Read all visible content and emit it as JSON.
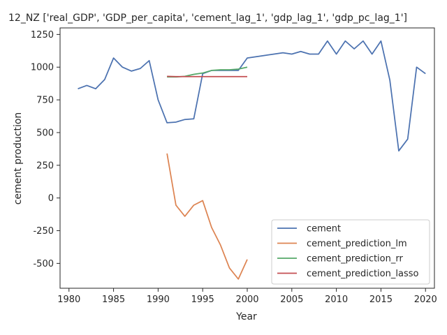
{
  "chart_data": {
    "type": "line",
    "title": "12_NZ ['real_GDP', 'GDP_per_capita', 'cement_lag_1', 'gdp_lag_1', 'gdp_pc_lag_1']",
    "xlabel": "Year",
    "ylabel": "cement production",
    "xlim": [
      1979,
      2021
    ],
    "ylim": [
      -690,
      1300
    ],
    "xticks": [
      1980,
      1985,
      1990,
      1995,
      2000,
      2005,
      2010,
      2015,
      2020
    ],
    "yticks": [
      -500,
      -250,
      0,
      250,
      500,
      750,
      1000,
      1250
    ],
    "legend_position": "lower-right",
    "series": [
      {
        "name": "cement",
        "color": "#4c72b0",
        "x": [
          1981,
          1982,
          1983,
          1984,
          1985,
          1986,
          1987,
          1988,
          1989,
          1990,
          1991,
          1992,
          1993,
          1994,
          1995,
          1996,
          1997,
          1998,
          1999,
          2000,
          2001,
          2002,
          2003,
          2004,
          2005,
          2006,
          2007,
          2008,
          2009,
          2010,
          2011,
          2012,
          2013,
          2014,
          2015,
          2016,
          2017,
          2018,
          2019,
          2020
        ],
        "y": [
          835,
          860,
          835,
          905,
          1070,
          1000,
          970,
          990,
          1050,
          750,
          575,
          580,
          600,
          605,
          950,
          975,
          975,
          975,
          975,
          1070,
          1080,
          1090,
          1100,
          1110,
          1100,
          1120,
          1100,
          1100,
          1200,
          1100,
          1200,
          1140,
          1200,
          1100,
          1200,
          900,
          360,
          450,
          1000,
          950
        ]
      },
      {
        "name": "cement_prediction_lm",
        "color": "#dd8452",
        "x": [
          1991,
          1992,
          1993,
          1994,
          1995,
          1996,
          1997,
          1998,
          1999,
          2000
        ],
        "y": [
          340,
          -55,
          -140,
          -55,
          -20,
          -225,
          -360,
          -535,
          -620,
          -470
        ]
      },
      {
        "name": "cement_prediction_rr",
        "color": "#55a868",
        "x": [
          1991,
          1992,
          1993,
          1994,
          1995,
          1996,
          1997,
          1998,
          1999,
          2000
        ],
        "y": [
          925,
          925,
          930,
          945,
          955,
          975,
          980,
          980,
          985,
          1000
        ]
      },
      {
        "name": "cement_prediction_lasso",
        "color": "#c44e52",
        "x": [
          1991,
          1992,
          1993,
          1994,
          1995,
          1996,
          1997,
          1998,
          1999,
          2000
        ],
        "y": [
          930,
          928,
          928,
          928,
          928,
          928,
          928,
          928,
          928,
          928
        ]
      }
    ]
  }
}
